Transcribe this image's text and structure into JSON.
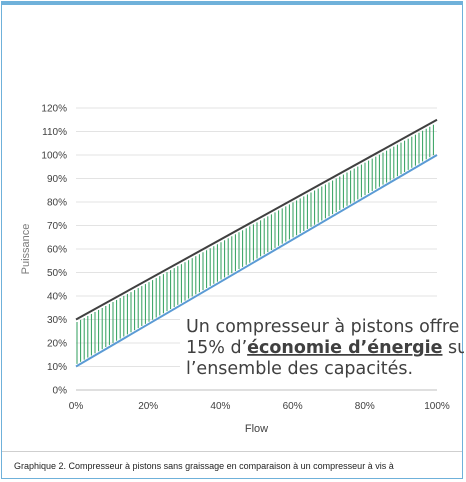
{
  "chart_data": {
    "type": "area",
    "xlabel": "Flow",
    "ylabel": "Puissance",
    "x": [
      0,
      100
    ],
    "xlim": [
      0,
      100
    ],
    "ylim": [
      0,
      120
    ],
    "x_ticks": [
      "0%",
      "20%",
      "40%",
      "60%",
      "80%",
      "100%"
    ],
    "y_ticks": [
      "0%",
      "10%",
      "20%",
      "30%",
      "40%",
      "50%",
      "60%",
      "70%",
      "80%",
      "90%",
      "100%",
      "110%",
      "120%"
    ],
    "grid": "horizontal",
    "series": [
      {
        "values": [
          30,
          115
        ],
        "color": "#404040"
      },
      {
        "values": [
          10,
          100
        ],
        "color": "#5b9bd5"
      }
    ],
    "fill_between": {
      "pattern": "vertical-hatch",
      "color": "#2e9e5b"
    },
    "annotation": {
      "line1": "Un compresseur à pistons offre",
      "line2_prefix": "15% d’",
      "line2_emphasis": "économie d’énergie",
      "line2_suffix": " sur",
      "line3": "l’ensemble des capacités."
    }
  },
  "caption": "Graphique 2. Compresseur à pistons sans graissage en comparaison à un compresseur à vis à"
}
